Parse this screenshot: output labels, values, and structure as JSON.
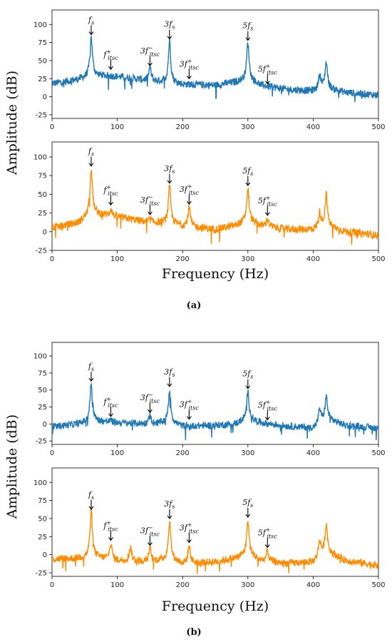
{
  "figure": {
    "ylabel": "Amplitude (dB)",
    "xlabel": "Frequency (Hz)",
    "caption_a": "(a)",
    "caption_b": "(b)"
  },
  "colors": {
    "blue": "#1f77b4",
    "orange": "#ff8c00"
  },
  "chart_data": [
    {
      "type": "line",
      "panel": "a-top",
      "color": "#1f77b4",
      "xlim": [
        0,
        500
      ],
      "ylim": [
        -30,
        120
      ],
      "xticks": [
        0,
        100,
        200,
        300,
        400,
        500
      ],
      "yticks": [
        -25,
        0,
        25,
        50,
        75,
        100
      ],
      "baseline": [
        [
          0,
          18
        ],
        [
          40,
          24
        ],
        [
          60,
          30
        ],
        [
          100,
          28
        ],
        [
          150,
          22
        ],
        [
          180,
          20
        ],
        [
          200,
          17
        ],
        [
          250,
          16
        ],
        [
          280,
          20
        ],
        [
          300,
          25
        ],
        [
          320,
          16
        ],
        [
          360,
          10
        ],
        [
          400,
          8
        ],
        [
          420,
          12
        ],
        [
          450,
          6
        ],
        [
          500,
          2
        ]
      ],
      "peaks": [
        [
          60,
          83
        ],
        [
          150,
          40
        ],
        [
          180,
          77
        ],
        [
          300,
          75
        ],
        [
          420,
          48
        ],
        [
          410,
          30
        ]
      ],
      "annotations": [
        {
          "label": "fs",
          "x": 60,
          "y": 83
        },
        {
          "label": "fitsc+",
          "x": 90,
          "y": 35
        },
        {
          "label": "3fitsc−",
          "x": 150,
          "y": 40
        },
        {
          "label": "3fs",
          "x": 180,
          "y": 77
        },
        {
          "label": "3fitsc+",
          "x": 210,
          "y": 22
        },
        {
          "label": "5fs",
          "x": 300,
          "y": 75
        },
        {
          "label": "5fitsc+",
          "x": 330,
          "y": 15
        }
      ]
    },
    {
      "type": "line",
      "panel": "a-bottom",
      "color": "#ff8c00",
      "xlim": [
        0,
        500
      ],
      "ylim": [
        -25,
        120
      ],
      "xticks": [
        0,
        100,
        200,
        300,
        400,
        500
      ],
      "yticks": [
        -25,
        0,
        25,
        50,
        75,
        100
      ],
      "baseline": [
        [
          0,
          5
        ],
        [
          40,
          12
        ],
        [
          60,
          25
        ],
        [
          100,
          20
        ],
        [
          150,
          12
        ],
        [
          180,
          12
        ],
        [
          200,
          8
        ],
        [
          250,
          3
        ],
        [
          280,
          8
        ],
        [
          300,
          15
        ],
        [
          320,
          8
        ],
        [
          360,
          3
        ],
        [
          400,
          3
        ],
        [
          420,
          8
        ],
        [
          450,
          0
        ],
        [
          500,
          -5
        ]
      ],
      "peaks": [
        [
          60,
          85
        ],
        [
          90,
          30
        ],
        [
          150,
          18
        ],
        [
          180,
          60
        ],
        [
          210,
          32
        ],
        [
          300,
          57
        ],
        [
          330,
          17
        ],
        [
          420,
          50
        ],
        [
          410,
          25
        ]
      ],
      "annotations": [
        {
          "label": "fs",
          "x": 60,
          "y": 85
        },
        {
          "label": "fitsc+",
          "x": 90,
          "y": 33
        },
        {
          "label": "3fitsc−",
          "x": 150,
          "y": 20
        },
        {
          "label": "3fs",
          "x": 180,
          "y": 62
        },
        {
          "label": "3fitsc+",
          "x": 210,
          "y": 34
        },
        {
          "label": "5fs",
          "x": 300,
          "y": 59
        },
        {
          "label": "5fitsc+",
          "x": 330,
          "y": 19
        }
      ]
    },
    {
      "type": "line",
      "panel": "b-top",
      "color": "#1f77b4",
      "xlim": [
        0,
        500
      ],
      "ylim": [
        -30,
        120
      ],
      "xticks": [
        0,
        100,
        200,
        300,
        400,
        500
      ],
      "yticks": [
        -25,
        0,
        25,
        50,
        75,
        100
      ],
      "baseline": [
        [
          0,
          -4
        ],
        [
          40,
          0
        ],
        [
          60,
          5
        ],
        [
          100,
          2
        ],
        [
          150,
          0
        ],
        [
          180,
          3
        ],
        [
          200,
          -3
        ],
        [
          250,
          -2
        ],
        [
          280,
          0
        ],
        [
          300,
          8
        ],
        [
          320,
          2
        ],
        [
          360,
          -3
        ],
        [
          400,
          -6
        ],
        [
          420,
          8
        ],
        [
          450,
          -2
        ],
        [
          500,
          -6
        ]
      ],
      "peaks": [
        [
          60,
          60
        ],
        [
          90,
          5
        ],
        [
          150,
          12
        ],
        [
          180,
          50
        ],
        [
          210,
          -5
        ],
        [
          300,
          47
        ],
        [
          330,
          0
        ],
        [
          420,
          40
        ],
        [
          410,
          22
        ]
      ],
      "annotations": [
        {
          "label": "fs",
          "x": 60,
          "y": 60
        },
        {
          "label": "fitsc+",
          "x": 90,
          "y": 8
        },
        {
          "label": "3fitsc−",
          "x": 150,
          "y": 14
        },
        {
          "label": "3fs",
          "x": 180,
          "y": 52
        },
        {
          "label": "3fitsc+",
          "x": 210,
          "y": 4
        },
        {
          "label": "5fs",
          "x": 300,
          "y": 49
        },
        {
          "label": "5fitsc+",
          "x": 330,
          "y": 3
        }
      ]
    },
    {
      "type": "line",
      "panel": "b-bottom",
      "color": "#ff8c00",
      "xlim": [
        0,
        500
      ],
      "ylim": [
        -30,
        120
      ],
      "xticks": [
        0,
        100,
        200,
        300,
        400,
        500
      ],
      "yticks": [
        -25,
        0,
        25,
        50,
        75,
        100
      ],
      "baseline": [
        [
          0,
          -6
        ],
        [
          40,
          -5
        ],
        [
          60,
          -2
        ],
        [
          100,
          -8
        ],
        [
          150,
          -10
        ],
        [
          180,
          -5
        ],
        [
          200,
          -12
        ],
        [
          250,
          -10
        ],
        [
          280,
          -5
        ],
        [
          300,
          2
        ],
        [
          320,
          -8
        ],
        [
          360,
          -12
        ],
        [
          400,
          -10
        ],
        [
          420,
          5
        ],
        [
          450,
          -8
        ],
        [
          500,
          -15
        ]
      ],
      "peaks": [
        [
          60,
          60
        ],
        [
          90,
          15
        ],
        [
          120,
          10
        ],
        [
          150,
          8
        ],
        [
          180,
          45
        ],
        [
          210,
          12
        ],
        [
          300,
          47
        ],
        [
          330,
          5
        ],
        [
          420,
          42
        ],
        [
          410,
          20
        ]
      ],
      "annotations": [
        {
          "label": "fs",
          "x": 60,
          "y": 60
        },
        {
          "label": "fitsc+",
          "x": 90,
          "y": 17
        },
        {
          "label": "3fitsc−",
          "x": 150,
          "y": 10
        },
        {
          "label": "3fs",
          "x": 180,
          "y": 47
        },
        {
          "label": "3fitsc+",
          "x": 210,
          "y": 14
        },
        {
          "label": "5fs",
          "x": 300,
          "y": 49
        },
        {
          "label": "5fitsc+",
          "x": 330,
          "y": 7
        }
      ]
    }
  ]
}
